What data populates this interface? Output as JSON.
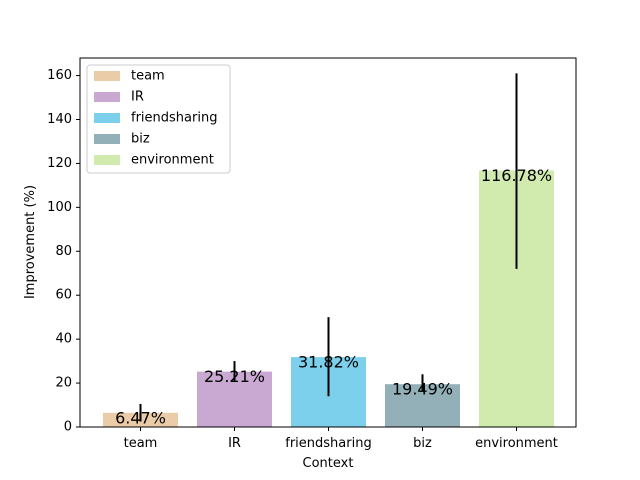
{
  "chart_data": {
    "type": "bar",
    "title": "",
    "xlabel": "Context",
    "ylabel": "Improvement (%)",
    "categories": [
      "team",
      "IR",
      "friendsharing",
      "biz",
      "environment"
    ],
    "values": [
      6.47,
      25.21,
      31.82,
      19.49,
      116.78
    ],
    "value_labels": [
      "6.47%",
      "25.21%",
      "31.82%",
      "19.49%",
      "116.78%"
    ],
    "error_bars": [
      {
        "low": 2.5,
        "high": 10.5
      },
      {
        "low": 21,
        "high": 30
      },
      {
        "low": 14,
        "high": 50
      },
      {
        "low": 16,
        "high": 24
      },
      {
        "low": 72,
        "high": 161
      }
    ],
    "colors": [
      "#ebcca9",
      "#c9a8d1",
      "#7dd0eb",
      "#93b0b8",
      "#d1eaae"
    ],
    "ylim": [
      0,
      168
    ],
    "yticks": [
      0,
      20,
      40,
      60,
      80,
      100,
      120,
      140,
      160
    ],
    "grid": false,
    "legend": {
      "position": "top-left",
      "entries": [
        "team",
        "IR",
        "friendsharing",
        "biz",
        "environment"
      ]
    }
  }
}
